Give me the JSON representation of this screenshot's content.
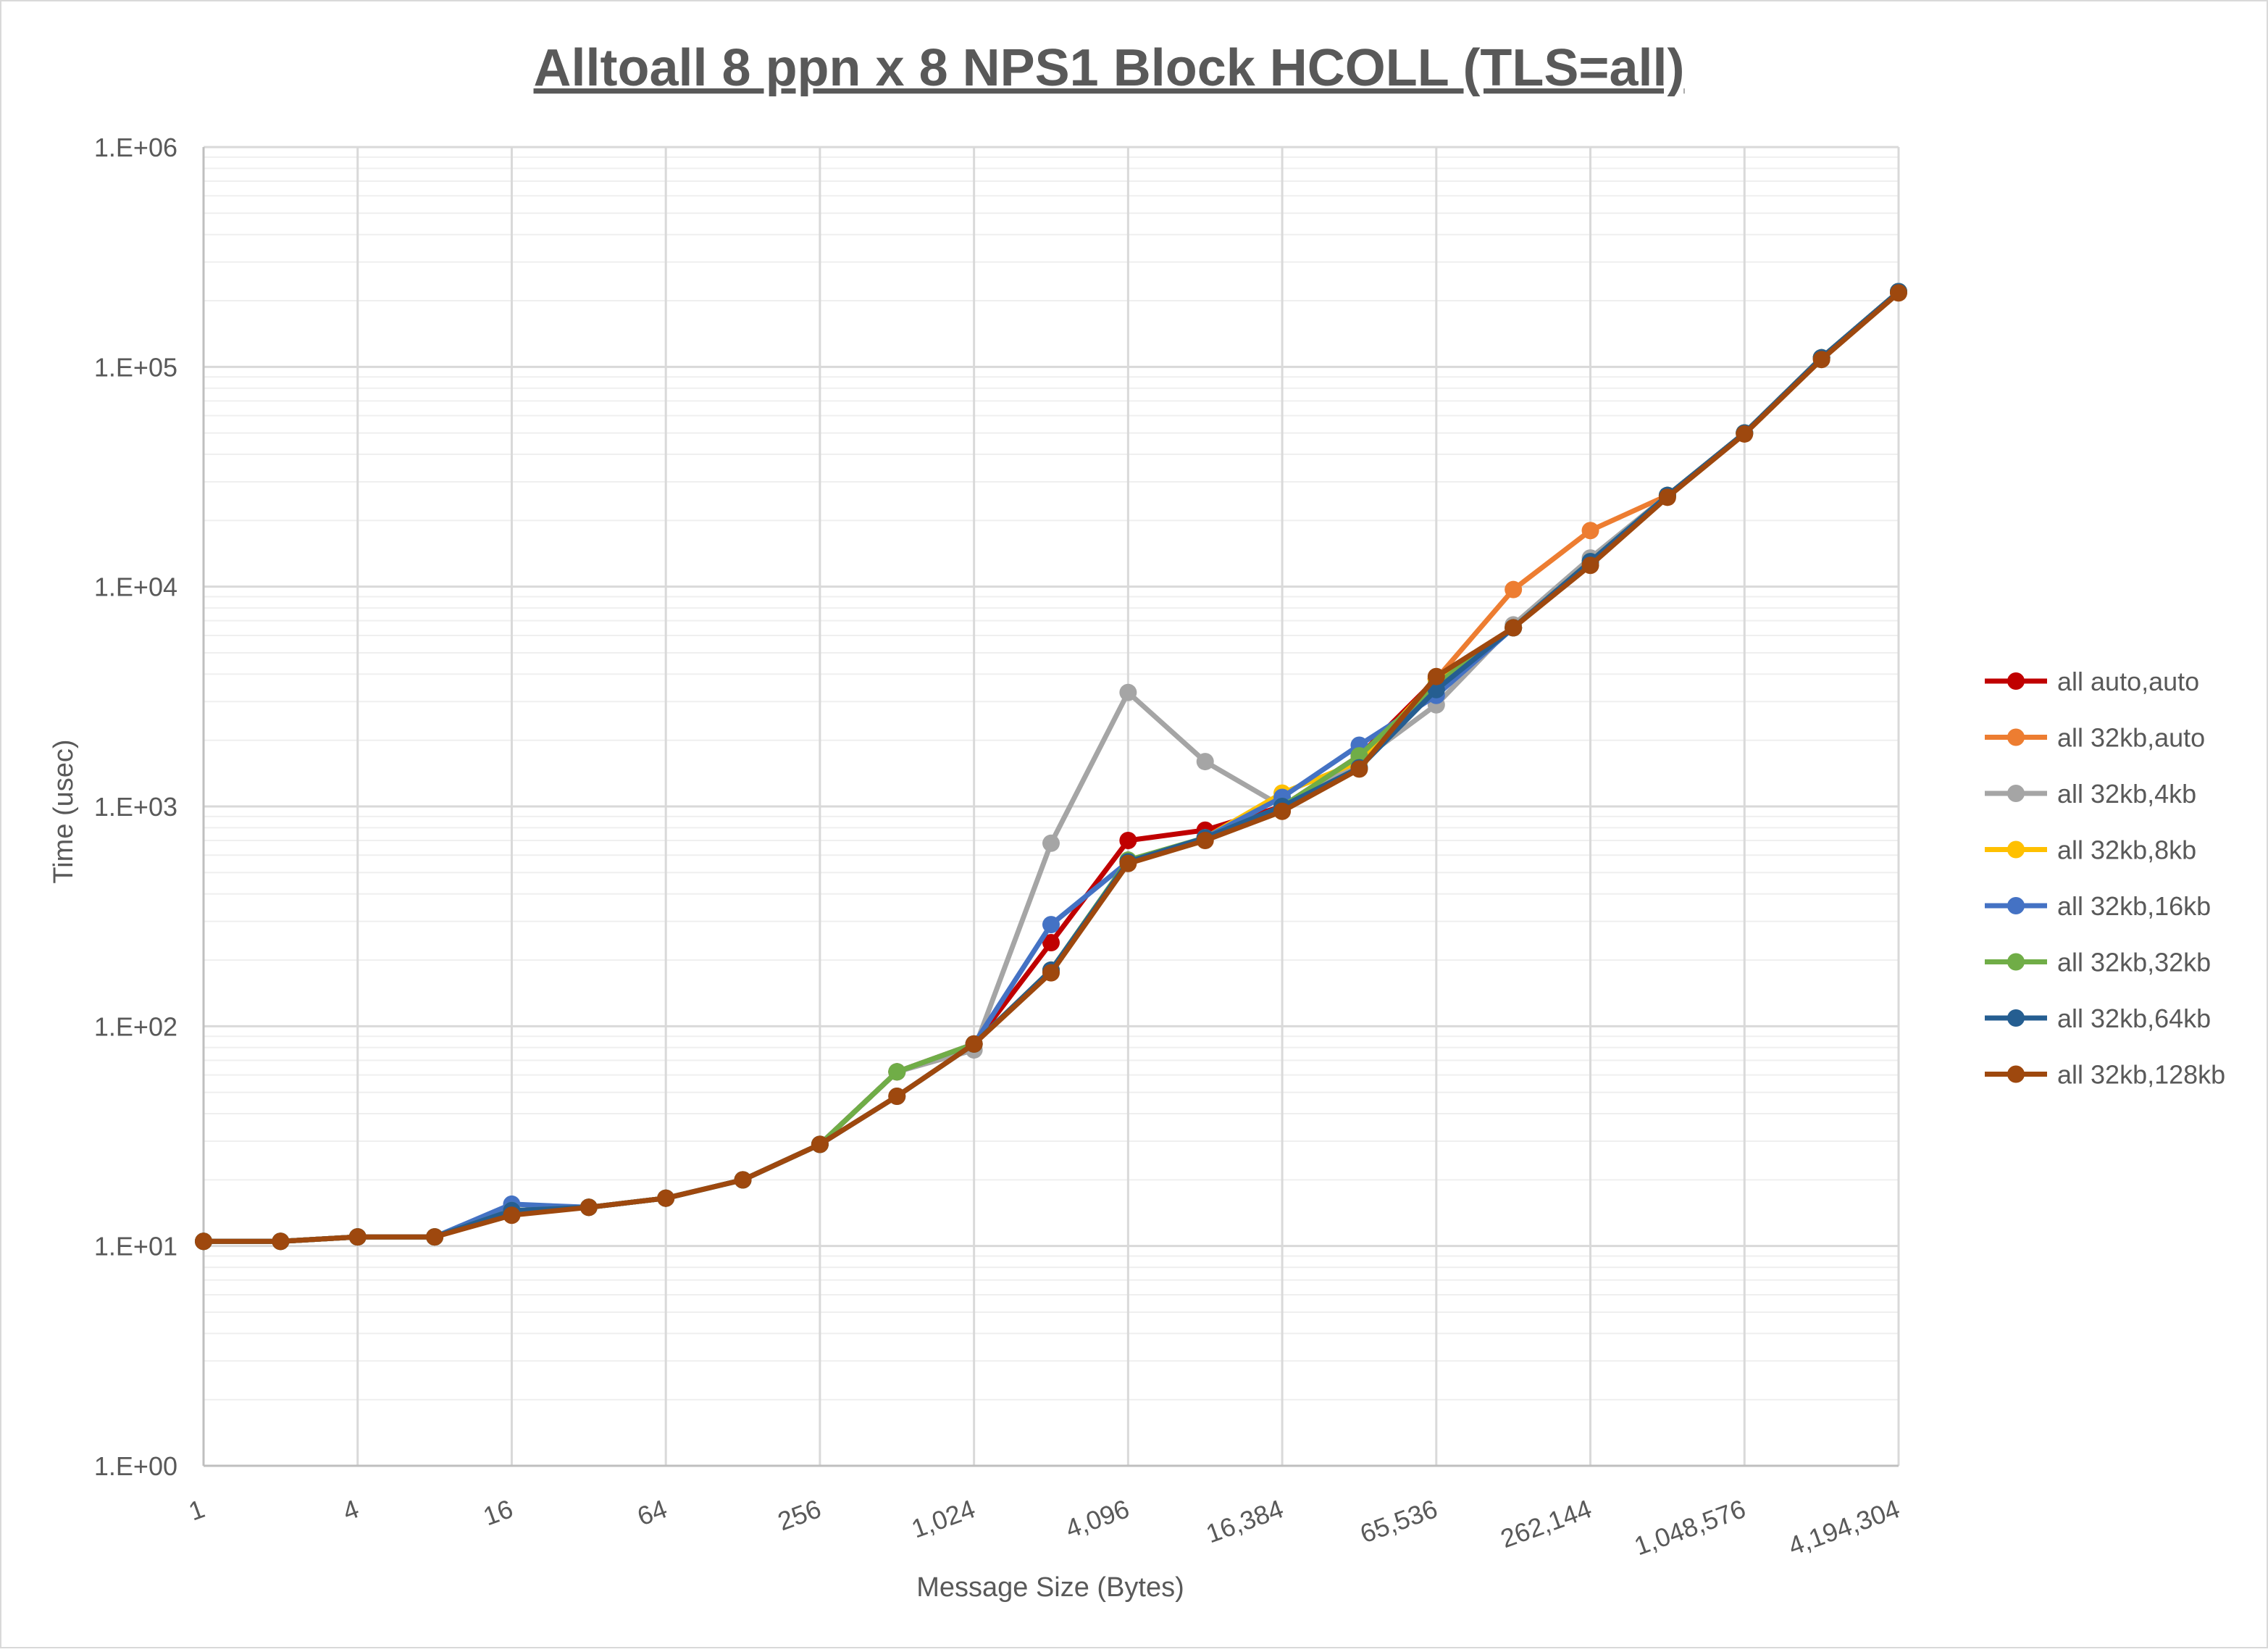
{
  "chart_data": {
    "type": "line",
    "title": "Alltoall 8 ppn x 8 NPS1 Block HCOLL (TLS=all)",
    "xlabel": "Message Size (Bytes)",
    "ylabel": "Time (usec)",
    "xscale": "log2",
    "yscale": "log10",
    "xlim": [
      1,
      4194304
    ],
    "ylim": [
      1,
      1000000
    ],
    "x_tick_labels": [
      "1",
      "4",
      "16",
      "64",
      "256",
      "1,024",
      "4,096",
      "16,384",
      "65,536",
      "262,144",
      "1,048,576",
      "4,194,304"
    ],
    "y_tick_labels": [
      "1.E+00",
      "1.E+01",
      "1.E+02",
      "1.E+03",
      "1.E+04",
      "1.E+05",
      "1.E+06"
    ],
    "grid": true,
    "minor_grid": true,
    "legend_position": "right",
    "x": [
      1,
      2,
      4,
      8,
      16,
      32,
      64,
      128,
      256,
      512,
      1024,
      2048,
      4096,
      8192,
      16384,
      32768,
      65536,
      131072,
      262144,
      524288,
      1048576,
      2097152,
      4194304
    ],
    "series": [
      {
        "name": "all auto,auto",
        "color": "#c00000",
        "values": [
          10.5,
          10.5,
          11,
          11,
          14.5,
          15,
          16.5,
          20,
          29,
          62,
          83,
          240,
          700,
          780,
          1000,
          1700,
          3800,
          6500,
          13000,
          26000,
          50000,
          110000,
          220000
        ]
      },
      {
        "name": "all 32kb,auto",
        "color": "#ed7d31",
        "values": [
          10.5,
          10.5,
          11,
          11,
          14.5,
          15,
          16.5,
          20,
          29,
          62,
          83,
          180,
          560,
          720,
          1000,
          1600,
          3800,
          9700,
          18000,
          26000,
          50000,
          110000,
          220000
        ]
      },
      {
        "name": "all 32kb,4kb",
        "color": "#a5a5a5",
        "values": [
          10.5,
          10.5,
          11,
          11,
          14.5,
          15,
          16.5,
          20,
          29,
          62,
          78,
          680,
          3300,
          1600,
          1000,
          1600,
          2900,
          6700,
          13500,
          26000,
          50000,
          110000,
          220000
        ]
      },
      {
        "name": "all 32kb,8kb",
        "color": "#ffc000",
        "values": [
          10.5,
          10.5,
          11,
          11,
          14.5,
          15,
          16.5,
          20,
          29,
          62,
          83,
          180,
          560,
          720,
          1150,
          1600,
          3800,
          6500,
          13000,
          26000,
          50000,
          110000,
          220000
        ]
      },
      {
        "name": "all 32kb,16kb",
        "color": "#4472c4",
        "values": [
          10.5,
          10.5,
          11,
          11,
          15.5,
          15,
          16.5,
          20,
          29,
          62,
          83,
          290,
          560,
          720,
          1100,
          1900,
          3200,
          6500,
          13000,
          26000,
          50000,
          110000,
          220000
        ]
      },
      {
        "name": "all 32kb,32kb",
        "color": "#70ad47",
        "values": [
          10.5,
          10.5,
          11,
          11,
          14.5,
          15,
          16.5,
          20,
          29,
          62,
          83,
          180,
          570,
          720,
          1000,
          1700,
          3600,
          6500,
          13000,
          26000,
          50000,
          110000,
          220000
        ]
      },
      {
        "name": "all 32kb,64kb",
        "color": "#255e91",
        "values": [
          10.5,
          10.5,
          11,
          11,
          14.5,
          15,
          16.5,
          20,
          29,
          48,
          83,
          180,
          560,
          720,
          1000,
          1500,
          3400,
          6500,
          13000,
          26000,
          50000,
          110000,
          220000
        ]
      },
      {
        "name": "all 32kb,128kb",
        "color": "#9e480e",
        "values": [
          10.5,
          10.5,
          11,
          11,
          13.8,
          15,
          16.5,
          20,
          29,
          48,
          83,
          175,
          550,
          700,
          950,
          1480,
          3900,
          6500,
          12500,
          25500,
          49500,
          108000,
          217000
        ]
      }
    ]
  }
}
